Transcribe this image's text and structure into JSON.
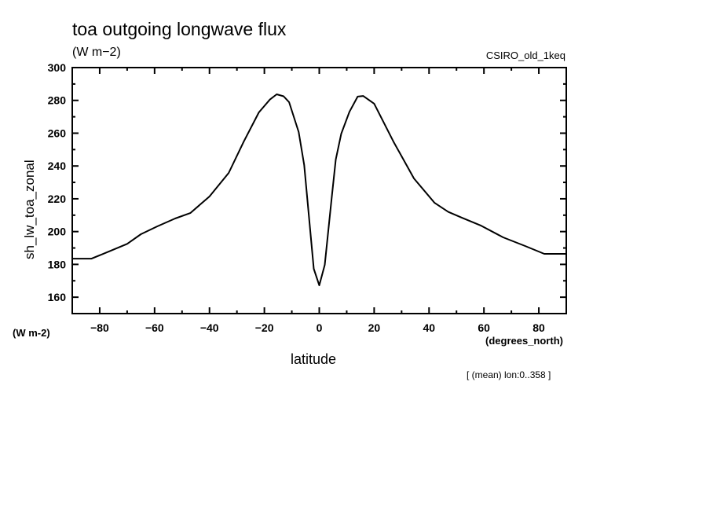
{
  "chart_data": {
    "type": "line",
    "title": "toa outgoing longwave flux",
    "units": "(W m−2)",
    "source_label": "CSIRO_old_1keq",
    "ylabel": "sh_lw_toa_zonal",
    "yunits": "(W m-2)",
    "xlabel": "latitude",
    "xunits": "(degrees_north)",
    "note": "[ (mean) lon:0..358 ]",
    "xlim": [
      -90,
      90
    ],
    "ylim": [
      150,
      300
    ],
    "xticks": [
      -80,
      -60,
      -40,
      -20,
      0,
      20,
      40,
      60,
      80
    ],
    "yticks": [
      160,
      180,
      200,
      220,
      240,
      260,
      280,
      300
    ],
    "grid": false,
    "series": [
      {
        "name": "sh_lw_toa_zonal",
        "x": [
          -90,
          -83,
          -76,
          -70,
          -65,
          -59,
          -52.5,
          -47,
          -40,
          -33,
          -27.5,
          -22,
          -18,
          -15.5,
          -13,
          -11,
          -7.5,
          -5.5,
          -2,
          0,
          2,
          4.5,
          6,
          8,
          11,
          14,
          16,
          20,
          27,
          34.5,
          42,
          47,
          52,
          59,
          67,
          75,
          82,
          90
        ],
        "y": [
          183.5,
          183.5,
          188.3,
          192.5,
          198.4,
          203.2,
          208,
          211.3,
          221.4,
          235.8,
          254.9,
          272.7,
          280.5,
          283.7,
          282.5,
          278.9,
          260.7,
          240.6,
          177.3,
          167.2,
          179.7,
          220,
          243.9,
          259.7,
          273,
          282.3,
          282.7,
          278,
          254.9,
          232.4,
          217.5,
          212,
          208.4,
          203.6,
          196.5,
          191.2,
          186.4,
          186.4
        ]
      }
    ]
  }
}
